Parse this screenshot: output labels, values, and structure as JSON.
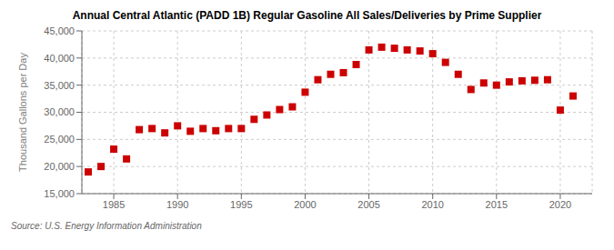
{
  "chart_data": {
    "type": "scatter",
    "title": "Annual Central Atlantic (PADD 1B) Regular Gasoline All Sales/Deliveries by Prime Supplier",
    "ylabel": "Thousand Gallons per Day",
    "annotation": "Source: U.S. Energy Information Administration",
    "x": [
      1983,
      1984,
      1985,
      1986,
      1987,
      1988,
      1989,
      1990,
      1991,
      1992,
      1993,
      1994,
      1995,
      1996,
      1997,
      1998,
      1999,
      2000,
      2001,
      2002,
      2003,
      2004,
      2005,
      2006,
      2007,
      2008,
      2009,
      2010,
      2011,
      2012,
      2013,
      2014,
      2015,
      2016,
      2017,
      2018,
      2019,
      2020,
      2021
    ],
    "values": [
      19000,
      20000,
      23200,
      21400,
      26800,
      27000,
      26200,
      27500,
      26500,
      27000,
      26600,
      27000,
      27000,
      28700,
      29500,
      30500,
      31000,
      33700,
      36000,
      37000,
      37300,
      38800,
      41500,
      42000,
      41800,
      41500,
      41300,
      40800,
      39200,
      37000,
      34200,
      35400,
      35000,
      35600,
      35800,
      35900,
      36000,
      30400,
      33000
    ],
    "color": "#cc0000",
    "marker": "square",
    "xlim": [
      1982.5,
      2022.5
    ],
    "xticks": [
      1985,
      1990,
      1995,
      2000,
      2005,
      2010,
      2015,
      2020
    ],
    "ylim": [
      15000,
      45000
    ],
    "yticks": [
      {
        "value": 15000,
        "label": "15,000"
      },
      {
        "value": 20000,
        "label": "20,000"
      },
      {
        "value": 25000,
        "label": "25,000"
      },
      {
        "value": 30000,
        "label": "30,000"
      },
      {
        "value": 35000,
        "label": "35,000"
      },
      {
        "value": 40000,
        "label": "40,000"
      },
      {
        "value": 45000,
        "label": "45,000"
      }
    ],
    "grid": true
  }
}
